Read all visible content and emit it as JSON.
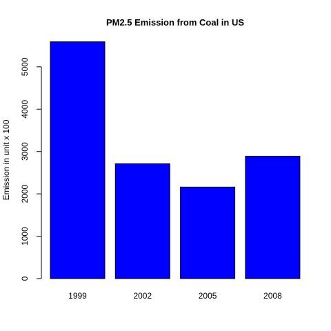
{
  "chart_data": {
    "type": "bar",
    "title": "PM2.5 Emission from Coal in US",
    "xlabel": "",
    "ylabel": "Emission in unit x 100",
    "categories": [
      "1999",
      "2002",
      "2005",
      "2008"
    ],
    "values": [
      5590,
      2710,
      2160,
      2890
    ],
    "ylim": [
      0,
      5600
    ],
    "yticks": [
      0,
      1000,
      2000,
      3000,
      4000,
      5000
    ],
    "grid": false,
    "legend": "none",
    "bar_color": "#0000FF",
    "bar_edge_color": "#000000"
  }
}
